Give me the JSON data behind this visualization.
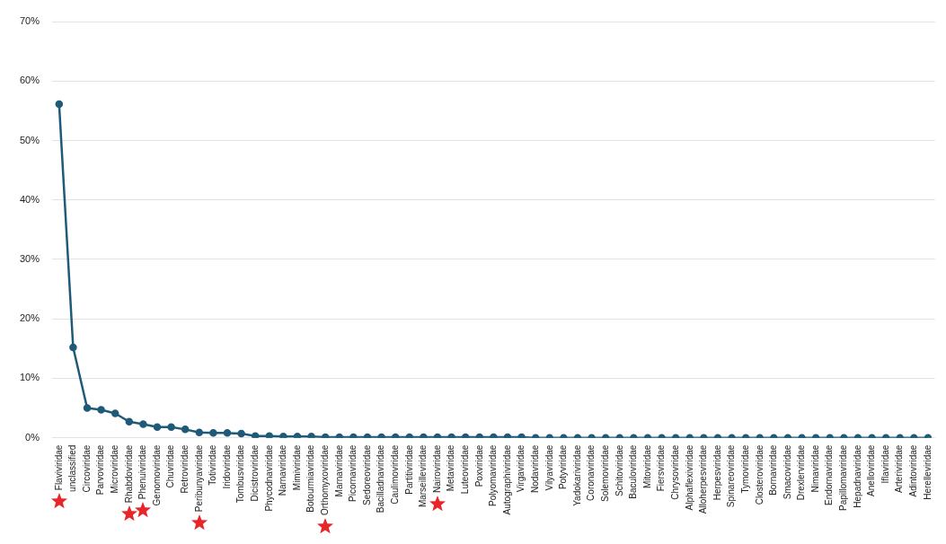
{
  "chart_data": {
    "type": "line",
    "categories": [
      "Flaviviridae",
      "unclassified",
      "Circoviridae",
      "Parvoviridae",
      "Microviridae",
      "Rhabdoviridae",
      "Phenuiviridae",
      "Genomoviridae",
      "Chuviridae",
      "Retroviridae",
      "Peribunyaviridae",
      "Totiviridae",
      "Iridoviridae",
      "Tombusviridae",
      "Dicistroviridae",
      "Phycodnaviridae",
      "Narnaviridae",
      "Mimiviridae",
      "Botourmiaviridae",
      "Orthomyxoviridae",
      "Marnaviridae",
      "Picornaviridae",
      "Sedoreoviridae",
      "Bacilladnaviridae",
      "Caulimoviridae",
      "Partitiviridae",
      "Marseilleviridae",
      "Nairoviridae",
      "Metaviridae",
      "Luteoviridae",
      "Poxviridae",
      "Polyomaviridae",
      "Autographiviridae",
      "Virgaviridae",
      "Nodaviridae",
      "Vilyaviridae",
      "Potyviridae",
      "Yadokariviridae",
      "Coronaviridae",
      "Solemoviridae",
      "Schitoviridae",
      "Baculoviridae",
      "Mitoviridae",
      "Fiersviridae",
      "Chrysoviridae",
      "Alphaflexiviridae",
      "Alloherpesviridae",
      "Herpesviridae",
      "Spinareoviridae",
      "Tymoviridae",
      "Closteroviridae",
      "Bornaviridae",
      "Smacoviridae",
      "Drexlerviridae",
      "Nimaviridae",
      "Endornaviridae",
      "Papillomaviridae",
      "Hepadnaviridae",
      "Anelloviridae",
      "Iflaviridae",
      "Arteriviridae",
      "Adintoviridae",
      "Herelleviridae"
    ],
    "series": [
      {
        "color": "#1f5a78",
        "values": [
          56.1,
          15.2,
          5.0,
          4.7,
          4.1,
          2.7,
          2.3,
          1.8,
          1.8,
          1.4,
          0.9,
          0.8,
          0.8,
          0.7,
          0.3,
          0.3,
          0.2,
          0.2,
          0.2,
          0.1,
          0.1,
          0.1,
          0.1,
          0.1,
          0.1,
          0.1,
          0.1,
          0.1,
          0.1,
          0.1,
          0.1,
          0.1,
          0.1,
          0.1,
          0,
          0,
          0,
          0,
          0,
          0,
          0,
          0,
          0,
          0,
          0,
          0,
          0,
          0,
          0,
          0,
          0,
          0,
          0,
          0,
          0,
          0,
          0,
          0,
          0,
          0,
          0,
          0,
          0
        ]
      }
    ],
    "ylim": [
      0,
      70
    ],
    "yticks": [
      {
        "value": 0,
        "label": "0%"
      },
      {
        "value": 10,
        "label": "10%"
      },
      {
        "value": 20,
        "label": "20%"
      },
      {
        "value": 30,
        "label": "30%"
      },
      {
        "value": 40,
        "label": "40%"
      },
      {
        "value": 50,
        "label": "50%"
      },
      {
        "value": 60,
        "label": "60%"
      },
      {
        "value": 70,
        "label": "70%"
      }
    ],
    "grid": "y",
    "marker": "circle",
    "line_style": "solid",
    "legend": false
  }
}
